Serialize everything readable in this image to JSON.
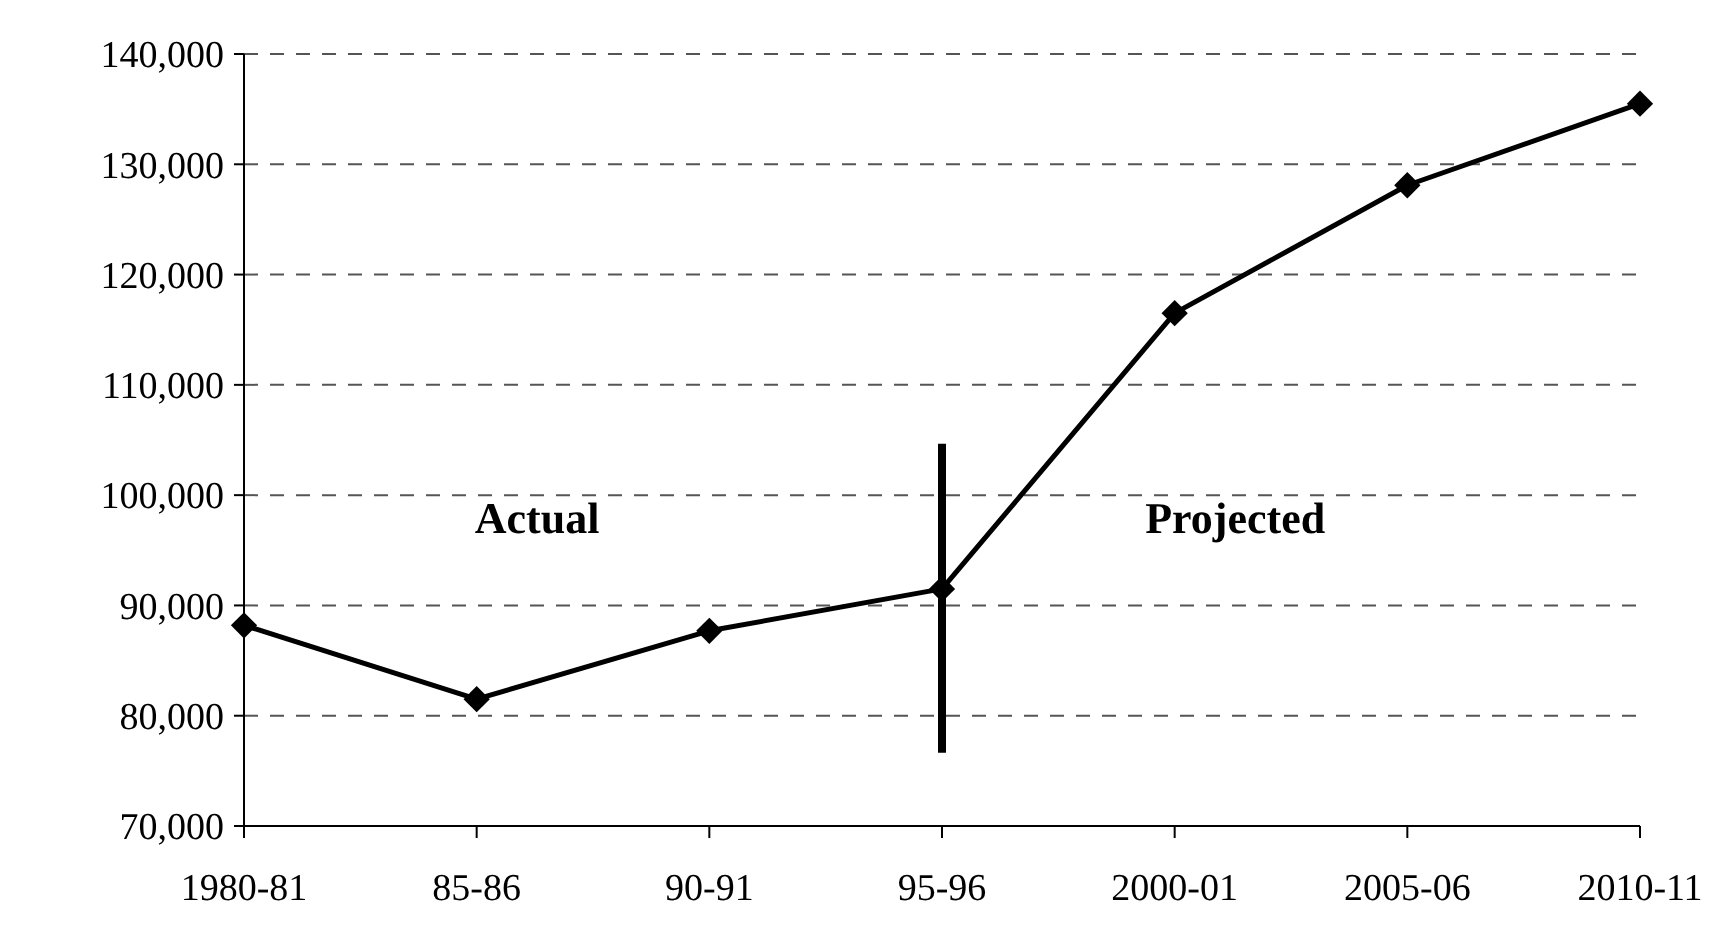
{
  "chart_data": {
    "type": "line",
    "categories": [
      "1980-81",
      "85-86",
      "90-91",
      "95-96",
      "2000-01",
      "2005-06",
      "2010-11"
    ],
    "series": [
      {
        "color": "#000000",
        "values": [
          88200,
          81500,
          87700,
          91500,
          116500,
          128100,
          135500
        ]
      }
    ],
    "ylim": [
      70000,
      140000
    ],
    "yticks": [
      {
        "value": 70000,
        "label": "70,000"
      },
      {
        "value": 80000,
        "label": "80,000"
      },
      {
        "value": 90000,
        "label": "90,000"
      },
      {
        "value": 100000,
        "label": "100,000"
      },
      {
        "value": 110000,
        "label": "110,000"
      },
      {
        "value": 120000,
        "label": "120,000"
      },
      {
        "value": 130000,
        "label": "130,000"
      },
      {
        "value": 140000,
        "label": "140,000"
      }
    ],
    "grid": "y",
    "marker": "diamond",
    "line_style": "solid",
    "ref_lines": [
      {
        "axis": "x",
        "value": "95-96",
        "color": "#000000"
      }
    ],
    "annotations": [
      "Actual",
      "Projected"
    ]
  }
}
